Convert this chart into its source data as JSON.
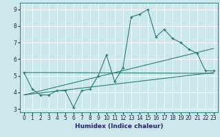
{
  "xlabel": "Humidex (Indice chaleur)",
  "xlim": [
    -0.5,
    23.5
  ],
  "ylim": [
    2.8,
    9.4
  ],
  "yticks": [
    3,
    4,
    5,
    6,
    7,
    8,
    9
  ],
  "xticks": [
    0,
    1,
    2,
    3,
    4,
    5,
    6,
    7,
    8,
    9,
    10,
    11,
    12,
    13,
    14,
    15,
    16,
    17,
    18,
    19,
    20,
    21,
    22,
    23
  ],
  "bg_color": "#cce8ec",
  "grid_color": "#aacccc",
  "line_color": "#2a7a70",
  "line1_x": [
    0,
    1,
    2,
    3,
    4,
    5,
    6,
    7,
    8,
    9,
    10,
    11,
    12,
    13,
    14,
    15,
    16,
    17,
    18,
    19,
    20,
    21,
    22,
    23
  ],
  "line1_y": [
    5.2,
    4.2,
    3.85,
    3.85,
    4.1,
    4.1,
    3.1,
    4.1,
    4.2,
    5.0,
    6.25,
    4.65,
    5.5,
    8.55,
    8.7,
    9.0,
    7.35,
    7.8,
    7.25,
    7.0,
    6.6,
    6.35,
    5.3,
    5.3
  ],
  "line2_x": [
    0,
    23
  ],
  "line2_y": [
    3.85,
    5.2
  ],
  "line3_x": [
    0,
    23
  ],
  "line3_y": [
    3.85,
    6.65
  ],
  "line4_x": [
    0,
    23
  ],
  "line4_y": [
    5.2,
    5.15
  ]
}
